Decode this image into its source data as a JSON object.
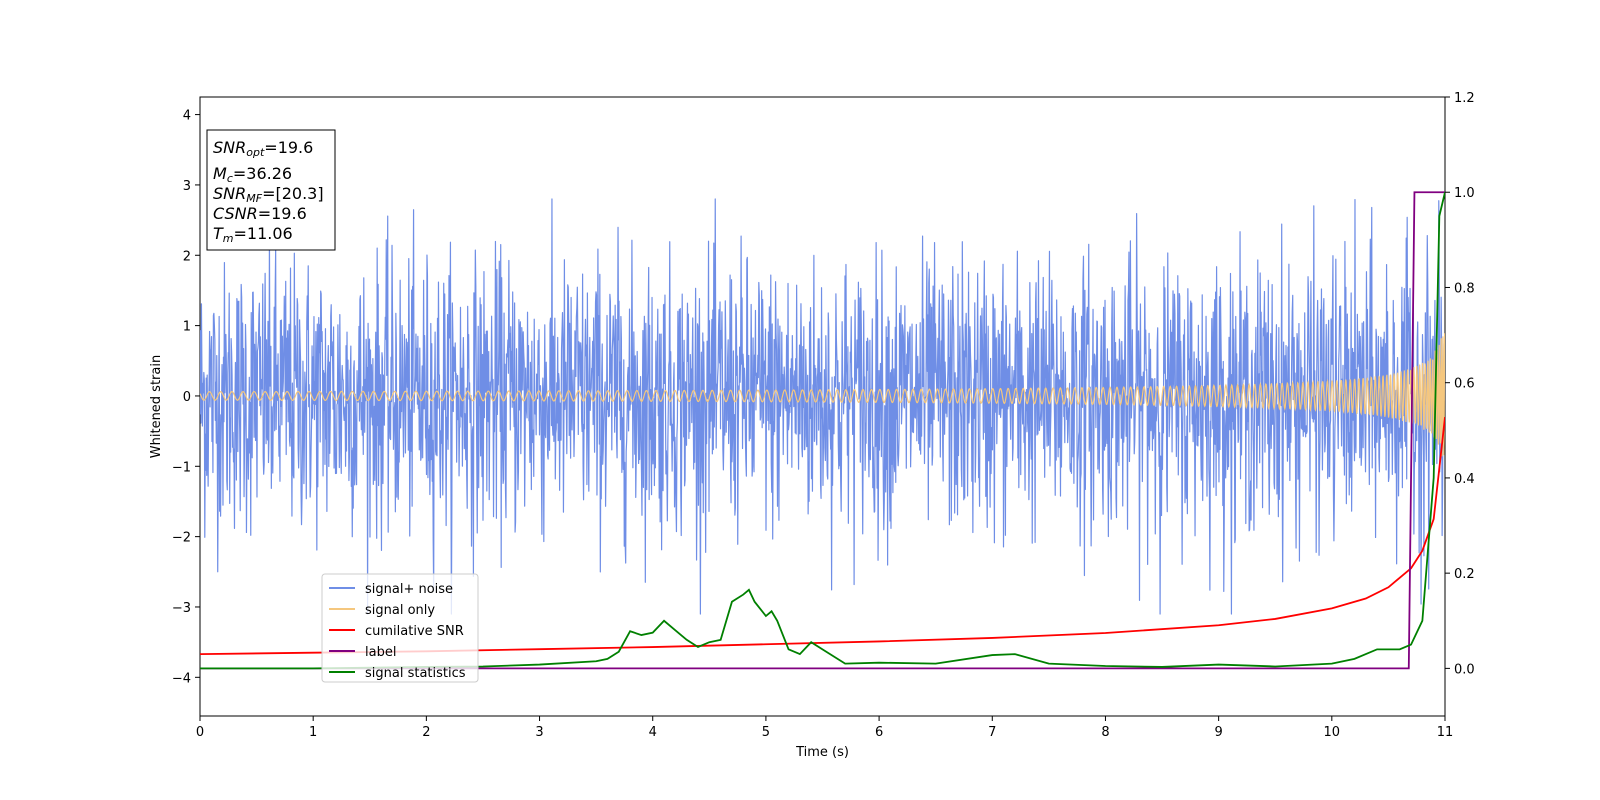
{
  "chart_data": {
    "type": "line",
    "xlabel": "Time (s)",
    "ylabel": "Whitened strain",
    "xlim": [
      0,
      11
    ],
    "ylim_left": [
      -4.55,
      4.25
    ],
    "ylim_right": [
      -0.1,
      1.2
    ],
    "x_ticks": [
      0,
      1,
      2,
      3,
      4,
      5,
      6,
      7,
      8,
      9,
      10,
      11
    ],
    "y_ticks_left": [
      -4,
      -3,
      -2,
      -1,
      0,
      1,
      2,
      3,
      4
    ],
    "y_ticks_right": [
      0.0,
      0.2,
      0.4,
      0.6,
      0.8,
      1.0,
      1.2
    ],
    "x_tick_labels": [
      "0",
      "1",
      "2",
      "3",
      "4",
      "5",
      "6",
      "7",
      "8",
      "9",
      "10",
      "11"
    ],
    "y_tick_labels_left": [
      "−4",
      "−3",
      "−2",
      "−1",
      "0",
      "1",
      "2",
      "3",
      "4"
    ],
    "y_tick_labels_right": [
      "0.0",
      "0.2",
      "0.4",
      "0.6",
      "0.8",
      "1.0",
      "1.2"
    ],
    "legend_location": "lower-left",
    "grid": false,
    "series": [
      {
        "name": "signal+ noise",
        "color": "#6f8ee6",
        "axis": "left",
        "kind": "noise",
        "approx_amplitude_std": 0.95,
        "approx_peak": 2.8
      },
      {
        "name": "signal only",
        "color": "#f5c77e",
        "axis": "left",
        "kind": "chirp",
        "merger_time": 11.06,
        "approx_final_amplitude": 1.0
      },
      {
        "name": "cumilative SNR",
        "color": "#ff0000",
        "axis": "left",
        "x": [
          0,
          1,
          2,
          3,
          4,
          5,
          6,
          7,
          8,
          9,
          9.5,
          10,
          10.3,
          10.5,
          10.7,
          10.8,
          10.9,
          11
        ],
        "y": [
          -3.67,
          -3.65,
          -3.63,
          -3.6,
          -3.57,
          -3.53,
          -3.49,
          -3.44,
          -3.37,
          -3.26,
          -3.17,
          -3.02,
          -2.88,
          -2.72,
          -2.45,
          -2.2,
          -1.75,
          -0.3
        ]
      },
      {
        "name": "label",
        "color": "#800080",
        "axis": "right",
        "x": [
          0,
          10.68,
          10.73,
          11
        ],
        "y": [
          0.0,
          0.0,
          1.0,
          1.0
        ]
      },
      {
        "name": "signal statistics",
        "color": "#008000",
        "axis": "right",
        "x": [
          0,
          1,
          2,
          2.5,
          3,
          3.5,
          3.6,
          3.7,
          3.8,
          3.9,
          4.0,
          4.1,
          4.2,
          4.3,
          4.4,
          4.5,
          4.6,
          4.7,
          4.8,
          4.85,
          4.9,
          5.0,
          5.05,
          5.1,
          5.2,
          5.3,
          5.4,
          5.5,
          5.7,
          6.0,
          6.5,
          7.0,
          7.2,
          7.5,
          8.0,
          8.5,
          9.0,
          9.5,
          10.0,
          10.2,
          10.4,
          10.6,
          10.7,
          10.8,
          10.9,
          10.95,
          11.0
        ],
        "y": [
          0.0,
          0.0,
          0.003,
          0.004,
          0.008,
          0.015,
          0.02,
          0.035,
          0.078,
          0.07,
          0.075,
          0.1,
          0.08,
          0.06,
          0.045,
          0.055,
          0.06,
          0.14,
          0.155,
          0.165,
          0.14,
          0.11,
          0.12,
          0.1,
          0.04,
          0.03,
          0.055,
          0.04,
          0.01,
          0.012,
          0.01,
          0.028,
          0.03,
          0.01,
          0.005,
          0.003,
          0.008,
          0.004,
          0.01,
          0.02,
          0.04,
          0.04,
          0.05,
          0.1,
          0.4,
          0.95,
          1.0
        ]
      }
    ],
    "annotations": {
      "info_box": {
        "lines": [
          {
            "main": "SNR",
            "sub": "opt",
            "value": "=19.6"
          },
          {
            "main": "M",
            "sub": "c",
            "value": "=36.26"
          },
          {
            "main": "SNR",
            "sub": "MF",
            "value": "=[20.3]"
          },
          {
            "main": "CSNR",
            "sub": "",
            "value": "=19.6"
          },
          {
            "main": "T",
            "sub": "m",
            "value": "=11.06"
          }
        ]
      }
    }
  }
}
